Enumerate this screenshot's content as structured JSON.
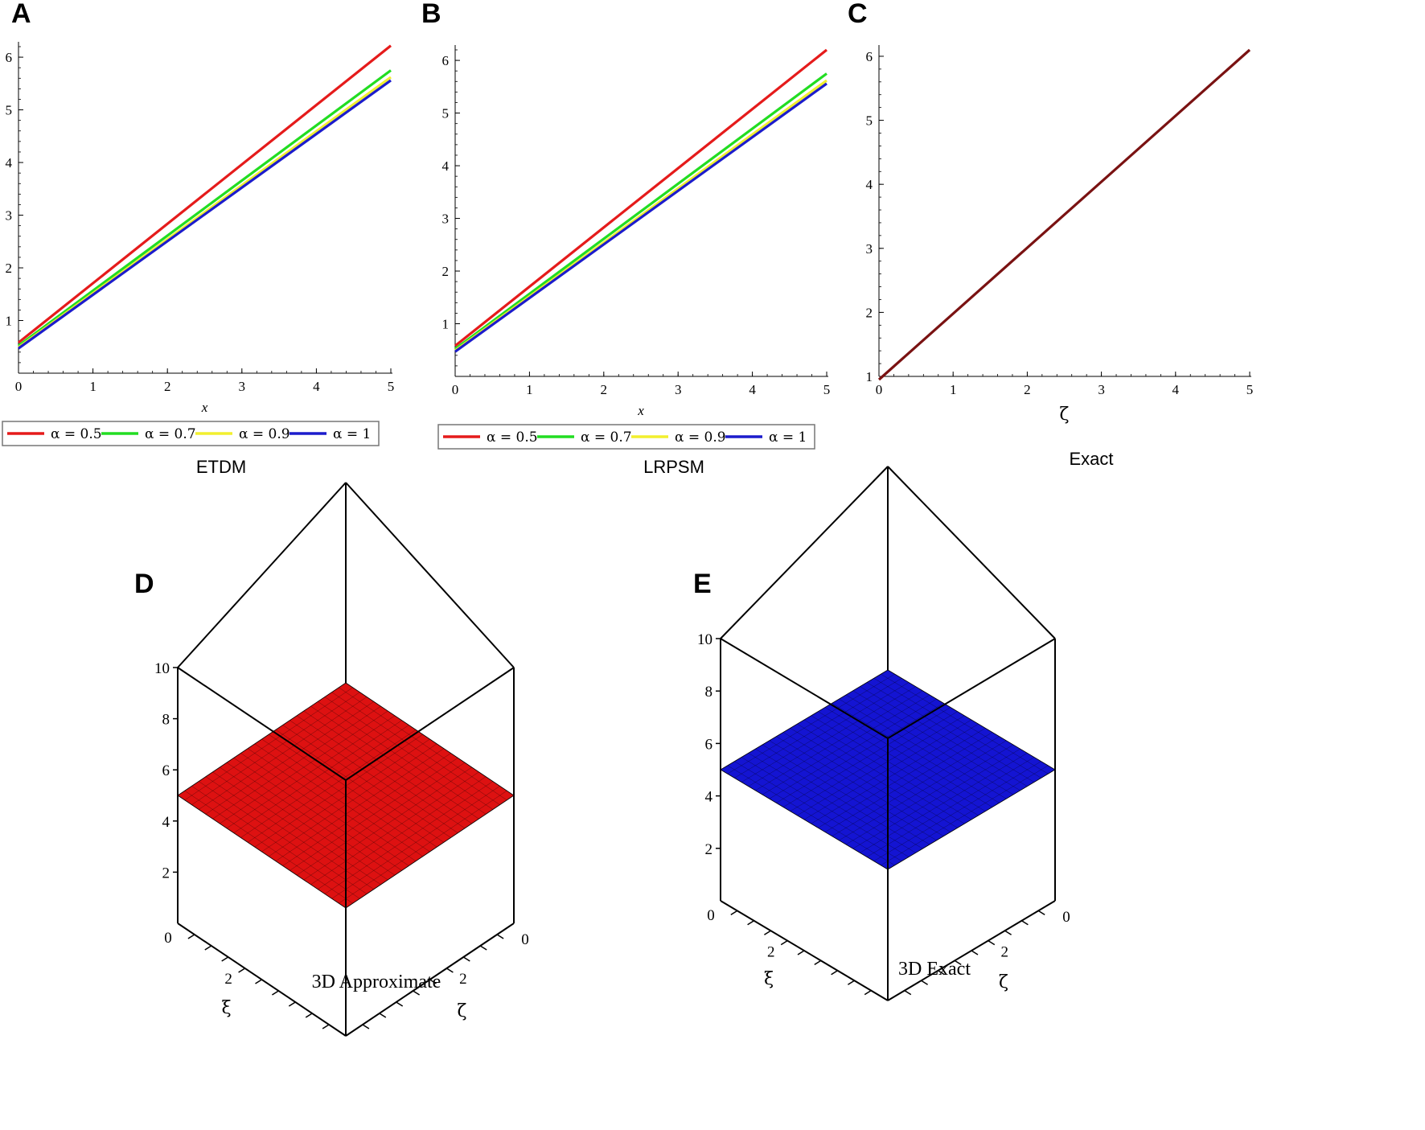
{
  "panels": [
    {
      "letter": "A",
      "caption": "ETDM",
      "xlabel": "x"
    },
    {
      "letter": "B",
      "caption": "LRPSM",
      "xlabel": "x"
    },
    {
      "letter": "C",
      "caption": "Exact",
      "xlabel": "ζ"
    },
    {
      "letter": "D",
      "caption": "3D Approximate",
      "xlabel": "ξ",
      "ylabel": "ζ"
    },
    {
      "letter": "E",
      "caption": "3D Exact",
      "xlabel": "ξ",
      "ylabel": "ζ"
    }
  ],
  "colors": {
    "red": "#e51b1b",
    "green": "#22dd22",
    "yellow": "#f2ef2e",
    "blue": "#1c1ccc",
    "exact": "#7a1212",
    "surface_red": "#dd1111",
    "surface_blue": "#1414d2"
  },
  "chart_data": [
    {
      "type": "line",
      "panel": "A",
      "caption": "ETDM",
      "xlabel": "x",
      "ylabel": "",
      "xlim": [
        0,
        5
      ],
      "ylim": [
        0,
        6.2
      ],
      "xticks": [
        0,
        1,
        2,
        3,
        4,
        5
      ],
      "yticks": [
        1,
        2,
        3,
        4,
        5,
        6
      ],
      "legend": "bottom",
      "series": [
        {
          "name": "α = 0.5",
          "color": "#e51b1b",
          "x": [
            0,
            5
          ],
          "y": [
            0.58,
            6.22
          ]
        },
        {
          "name": "α = 0.7",
          "color": "#22dd22",
          "x": [
            0,
            5
          ],
          "y": [
            0.52,
            5.75
          ]
        },
        {
          "name": "α = 0.9",
          "color": "#f2ef2e",
          "x": [
            0,
            5
          ],
          "y": [
            0.49,
            5.62
          ]
        },
        {
          "name": "α = 1",
          "color": "#1c1ccc",
          "x": [
            0,
            5
          ],
          "y": [
            0.47,
            5.56
          ]
        }
      ]
    },
    {
      "type": "line",
      "panel": "B",
      "caption": "LRPSM",
      "xlabel": "x",
      "ylabel": "",
      "xlim": [
        0,
        5
      ],
      "ylim": [
        0,
        6.2
      ],
      "xticks": [
        0,
        1,
        2,
        3,
        4,
        5
      ],
      "yticks": [
        1,
        2,
        3,
        4,
        5,
        6
      ],
      "legend": "bottom",
      "series": [
        {
          "name": "α = 0.5",
          "color": "#e51b1b",
          "x": [
            0,
            5
          ],
          "y": [
            0.58,
            6.2
          ]
        },
        {
          "name": "α = 0.7",
          "color": "#22dd22",
          "x": [
            0,
            5
          ],
          "y": [
            0.52,
            5.75
          ]
        },
        {
          "name": "α = 0.9",
          "color": "#f2ef2e",
          "x": [
            0,
            5
          ],
          "y": [
            0.49,
            5.62
          ]
        },
        {
          "name": "α = 1",
          "color": "#1c1ccc",
          "x": [
            0,
            5
          ],
          "y": [
            0.47,
            5.56
          ]
        }
      ]
    },
    {
      "type": "line",
      "panel": "C",
      "caption": "Exact",
      "xlabel": "ζ",
      "ylabel": "",
      "xlim": [
        0,
        5
      ],
      "ylim": [
        1,
        6.1
      ],
      "xticks": [
        0,
        1,
        2,
        3,
        4,
        5
      ],
      "yticks": [
        1,
        2,
        3,
        4,
        5,
        6
      ],
      "legend": "none",
      "series": [
        {
          "color": "#7a1212",
          "x": [
            0,
            5
          ],
          "y": [
            0.95,
            6.1
          ]
        }
      ]
    },
    {
      "type": "surface",
      "panel": "D",
      "caption": "3D Approximate",
      "xlabel": "ξ",
      "ylabel": "ζ",
      "zlim": [
        0,
        10
      ],
      "zticks": [
        2,
        4,
        6,
        8,
        10
      ],
      "xticks": [
        0,
        2
      ],
      "yticks": [
        0,
        2
      ],
      "surface_level": 5,
      "color": "#dd1111"
    },
    {
      "type": "surface",
      "panel": "E",
      "caption": "3D Exact",
      "xlabel": "ξ",
      "ylabel": "ζ",
      "zlim": [
        0,
        10
      ],
      "zticks": [
        2,
        4,
        6,
        8,
        10
      ],
      "xticks": [
        0,
        2
      ],
      "yticks": [
        0,
        2
      ],
      "surface_level": 5,
      "color": "#1414d2"
    }
  ]
}
